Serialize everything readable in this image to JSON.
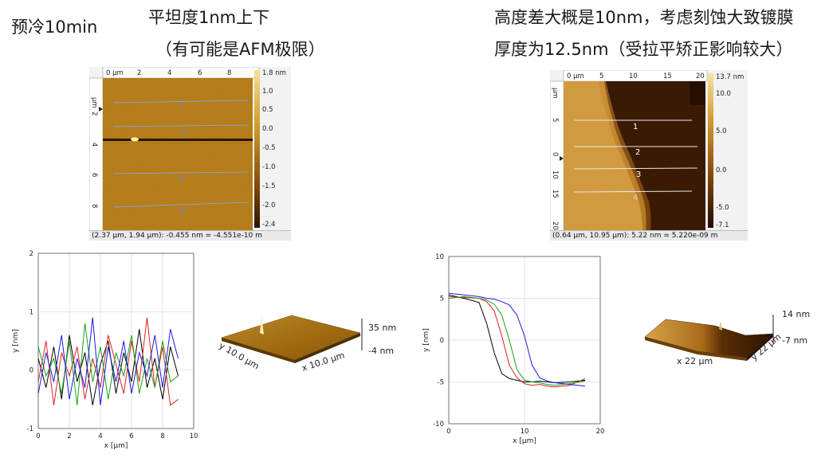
{
  "notes": {
    "left_top": "预冷10min",
    "left_line1": "平坦度1nm上下",
    "left_line2": "（有可能是AFM极限）",
    "right_line1": "高度差大概是10nm，考虑刻蚀大致镀膜",
    "right_line2": "厚度为12.5nm（受拉平矫正影响较大）"
  },
  "afm_left": {
    "x_unit": "0 µm",
    "x_ticks": [
      "2",
      "4",
      "6",
      "8"
    ],
    "y_unit": "µm",
    "y_ticks": [
      "2",
      "4",
      "6",
      "8"
    ],
    "colorbar_ticks": [
      "1.8 nm",
      "1.0",
      "0.5",
      "0.0",
      "-0.5",
      "-1.0",
      "-1.5",
      "-2.0",
      "-2.4"
    ],
    "profile_labels": [
      "1",
      "2",
      "3",
      "4"
    ],
    "coord_text": "(2.37 µm, 1.94 µm): -0.455 nm = -4.551e-10 m",
    "colors": {
      "low": "#5a3205",
      "mid": "#b77c17",
      "high": "#e9c87a",
      "line": "#8fa0c8"
    }
  },
  "afm_right": {
    "x_unit": "0 µm",
    "x_ticks": [
      "5",
      "10",
      "15",
      "20"
    ],
    "y_unit": "µm",
    "y_ticks": [
      "0",
      "5",
      "10",
      "15",
      "20"
    ],
    "colorbar_ticks": [
      "13.7 nm",
      "10.0",
      "5.0",
      "0.0",
      "-5.0",
      "-7.1"
    ],
    "profile_labels": [
      "1",
      "2",
      "3",
      "4"
    ],
    "coord_text": "(0.64 µm, 10.95 µm): 5.22 nm = 5.220e-09 m",
    "colors": {
      "high": "#d59a3c",
      "low": "#3d1a02",
      "line": "#e8e8e8"
    }
  },
  "surface_left": {
    "z_top": "35 nm",
    "z_bottom": "-4 nm",
    "y_label": "y 10.0 µm",
    "x_label": "x 10.0 µm"
  },
  "surface_right": {
    "z_top": "14 nm",
    "z_bottom": "-7 nm",
    "y_label": "y 22 µm",
    "x_label": "x 22 µm"
  },
  "chart_data": [
    {
      "type": "line",
      "xlabel": "x [µm]",
      "ylabel": "y [nm]",
      "xlim": [
        0,
        10
      ],
      "ylim": [
        -1,
        2
      ],
      "x_ticks": [
        "0",
        "2",
        "4",
        "6",
        "8",
        "10"
      ],
      "y_ticks": [
        "-1",
        "0",
        "1",
        "2"
      ],
      "grid": true,
      "x": [
        0.0,
        0.5,
        1.0,
        1.5,
        2.0,
        2.5,
        3.0,
        3.5,
        4.0,
        4.5,
        5.0,
        5.5,
        6.0,
        6.5,
        7.0,
        7.5,
        8.0,
        8.5,
        9.0
      ],
      "series": [
        {
          "color": "#000000",
          "values": [
            0.2,
            -0.3,
            0.4,
            -0.5,
            0.6,
            -0.2,
            0.3,
            -0.6,
            0.1,
            0.5,
            -0.4,
            0.3,
            -0.2,
            0.7,
            -0.3,
            0.2,
            -0.5,
            0.4,
            -0.1
          ]
        },
        {
          "color": "#e02020",
          "values": [
            -0.2,
            0.5,
            -0.6,
            0.3,
            -0.1,
            0.4,
            -0.5,
            0.2,
            -0.3,
            0.6,
            0.1,
            -0.4,
            0.5,
            -0.2,
            0.9,
            -0.3,
            0.4,
            -0.6,
            -0.5
          ]
        },
        {
          "color": "#1aa01a",
          "values": [
            0.4,
            -0.1,
            0.2,
            -0.4,
            0.5,
            -0.6,
            0.8,
            -0.2,
            0.4,
            -0.5,
            0.3,
            -0.1,
            0.6,
            -0.4,
            0.2,
            -0.3,
            0.5,
            -0.2,
            -0.1
          ]
        },
        {
          "color": "#1a1ae0",
          "values": [
            -0.4,
            0.3,
            -0.2,
            0.6,
            -0.5,
            0.2,
            -0.3,
            0.9,
            -0.6,
            0.4,
            -0.2,
            0.5,
            -0.4,
            0.3,
            -0.1,
            0.6,
            -0.3,
            0.7,
            0.2
          ]
        }
      ]
    },
    {
      "type": "line",
      "xlabel": "x [µm]",
      "ylabel": "y [nm]",
      "xlim": [
        0,
        20
      ],
      "ylim": [
        -10,
        10
      ],
      "x_ticks": [
        "0",
        "10",
        "20"
      ],
      "y_ticks": [
        "-10",
        "-5",
        "0",
        "5",
        "10"
      ],
      "grid": true,
      "x": [
        0,
        2,
        4,
        5,
        6,
        7,
        8,
        9,
        10,
        11,
        12,
        13,
        14,
        16,
        18
      ],
      "series": [
        {
          "color": "#000000",
          "values": [
            5.4,
            5.0,
            4.5,
            2.0,
            -1.5,
            -4.0,
            -4.6,
            -4.8,
            -5.0,
            -5.0,
            -4.9,
            -5.0,
            -5.1,
            -5.0,
            -4.8
          ]
        },
        {
          "color": "#e02020",
          "values": [
            5.2,
            5.1,
            5.0,
            4.6,
            3.5,
            0.5,
            -3.0,
            -4.5,
            -5.2,
            -5.4,
            -5.3,
            -5.5,
            -5.6,
            -5.4,
            -4.6
          ]
        },
        {
          "color": "#1aa01a",
          "values": [
            5.0,
            5.2,
            5.0,
            4.8,
            4.3,
            3.0,
            0.0,
            -3.5,
            -4.8,
            -5.0,
            -5.1,
            -5.3,
            -5.4,
            -5.2,
            -4.9
          ]
        },
        {
          "color": "#1a1ae0",
          "values": [
            5.6,
            5.4,
            5.2,
            5.0,
            4.9,
            4.6,
            4.2,
            3.0,
            0.5,
            -3.0,
            -4.5,
            -4.9,
            -5.1,
            -5.3,
            -5.5
          ]
        }
      ]
    }
  ]
}
